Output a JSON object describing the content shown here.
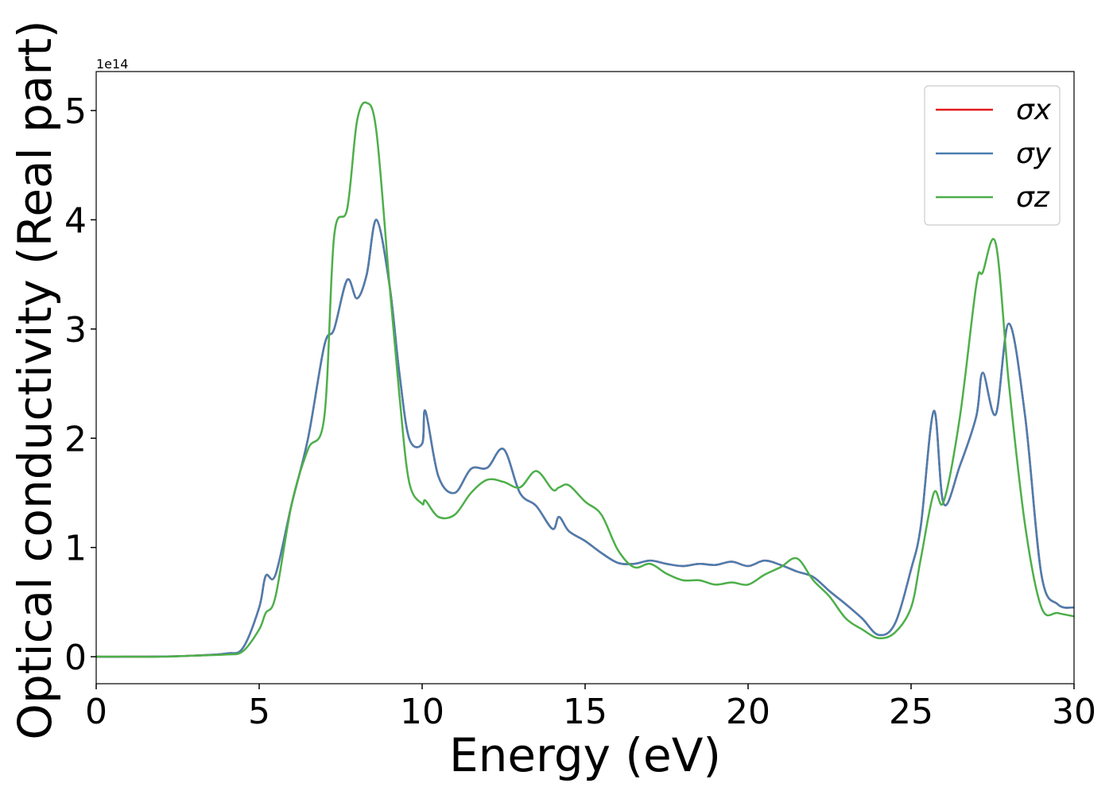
{
  "chart_data": {
    "type": "line",
    "xlabel": "Energy (eV)",
    "ylabel": "Optical conductivity (Real part)",
    "y_offset_label": "1e14",
    "xlim": [
      0,
      30
    ],
    "ylim": [
      -0.247,
      5.357
    ],
    "xticks": [
      0,
      5,
      10,
      15,
      20,
      25,
      30
    ],
    "yticks": [
      0,
      1,
      2,
      3,
      4,
      5
    ],
    "legend": "upper right",
    "grid": false,
    "x": [
      0,
      1,
      2,
      3,
      4,
      4.5,
      5,
      5.2,
      5.5,
      6,
      6.5,
      7,
      7.3,
      7.7,
      8,
      8.3,
      8.6,
      9,
      9.3,
      9.6,
      10,
      10.1,
      10.5,
      11,
      11.5,
      12,
      12.5,
      13,
      13.5,
      14,
      14.2,
      14.5,
      15,
      15.5,
      16,
      16.5,
      17,
      17.5,
      18,
      18.5,
      19,
      19.5,
      20,
      20.5,
      21,
      21.5,
      22,
      22.5,
      23,
      23.5,
      24,
      24.5,
      25,
      25.3,
      25.7,
      26,
      26.5,
      27,
      27.2,
      27.6,
      28,
      28.5,
      29,
      29.5,
      30
    ],
    "series": [
      {
        "name": "σx",
        "color": "#e41a1c",
        "values": [
          0,
          0,
          0.002,
          0.01,
          0.03,
          0.08,
          0.45,
          0.74,
          0.75,
          1.4,
          2.0,
          2.85,
          3.0,
          3.45,
          3.28,
          3.5,
          4.0,
          3.4,
          2.6,
          2.0,
          1.95,
          2.25,
          1.65,
          1.5,
          1.72,
          1.73,
          1.9,
          1.5,
          1.38,
          1.17,
          1.28,
          1.15,
          1.06,
          0.95,
          0.86,
          0.85,
          0.88,
          0.85,
          0.83,
          0.85,
          0.84,
          0.87,
          0.83,
          0.88,
          0.84,
          0.78,
          0.73,
          0.6,
          0.48,
          0.35,
          0.2,
          0.3,
          0.8,
          1.2,
          2.25,
          1.4,
          1.75,
          2.2,
          2.6,
          2.22,
          3.05,
          2.2,
          0.75,
          0.48,
          0.45
        ]
      },
      {
        "name": "σy",
        "color": "#4a7eb0",
        "values": [
          0,
          0,
          0.002,
          0.01,
          0.03,
          0.08,
          0.45,
          0.74,
          0.75,
          1.4,
          2.0,
          2.85,
          3.0,
          3.45,
          3.28,
          3.5,
          4.0,
          3.4,
          2.6,
          2.0,
          1.95,
          2.25,
          1.65,
          1.5,
          1.72,
          1.73,
          1.9,
          1.5,
          1.38,
          1.17,
          1.28,
          1.15,
          1.06,
          0.95,
          0.86,
          0.85,
          0.88,
          0.85,
          0.83,
          0.85,
          0.84,
          0.87,
          0.83,
          0.88,
          0.84,
          0.78,
          0.73,
          0.6,
          0.48,
          0.35,
          0.2,
          0.3,
          0.8,
          1.2,
          2.25,
          1.4,
          1.75,
          2.2,
          2.6,
          2.22,
          3.05,
          2.2,
          0.75,
          0.48,
          0.45
        ]
      },
      {
        "name": "σz",
        "color": "#4daf4a",
        "values": [
          0,
          0,
          0,
          0.01,
          0.02,
          0.05,
          0.25,
          0.4,
          0.55,
          1.4,
          1.9,
          2.2,
          3.85,
          4.1,
          4.9,
          5.07,
          4.8,
          3.4,
          2.4,
          1.6,
          1.4,
          1.43,
          1.28,
          1.3,
          1.5,
          1.62,
          1.6,
          1.55,
          1.7,
          1.53,
          1.55,
          1.57,
          1.42,
          1.3,
          0.98,
          0.82,
          0.85,
          0.76,
          0.7,
          0.7,
          0.66,
          0.68,
          0.66,
          0.75,
          0.82,
          0.9,
          0.7,
          0.55,
          0.35,
          0.25,
          0.17,
          0.22,
          0.45,
          0.9,
          1.5,
          1.42,
          2.2,
          3.4,
          3.52,
          3.78,
          2.5,
          1.2,
          0.45,
          0.4,
          0.37
        ]
      }
    ]
  }
}
